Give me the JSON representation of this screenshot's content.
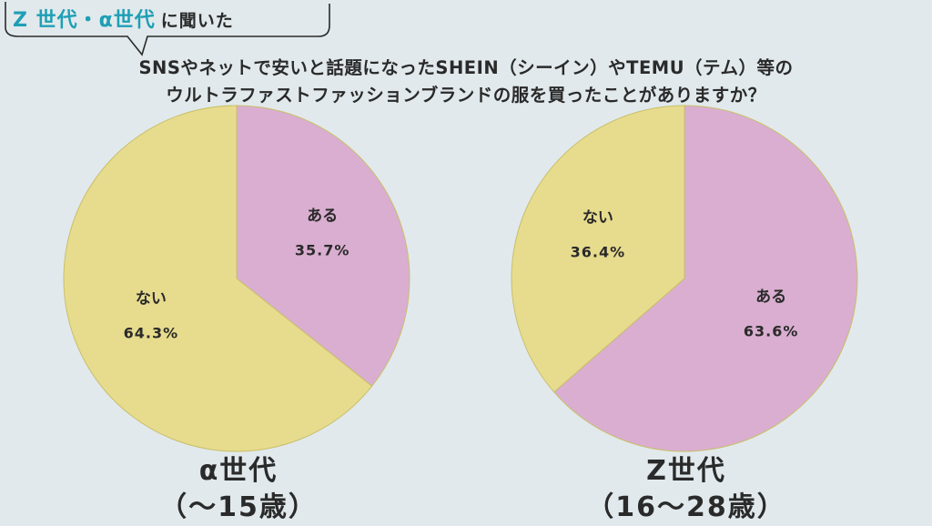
{
  "header": {
    "tag_accent": "Z 世代・α世代",
    "tag_plain": "に聞いた"
  },
  "question": {
    "line1": "SNSやネットで安いと話題になったSHEIN（シーイン）やTEMU（テム）等の",
    "line2": "ウルトラファストファッションブランドの服を買ったことがありますか？"
  },
  "colors": {
    "background": "#e1e9ec",
    "aru": "#d9aed0",
    "nai": "#e7dc8e",
    "accent": "#1e9fb5"
  },
  "chart_data": [
    {
      "type": "pie",
      "group": "α世代",
      "age_range": "（〜15歳）",
      "slices": [
        {
          "label": "ある",
          "value": 35.7,
          "display": "35.7%",
          "color": "#d9aed0"
        },
        {
          "label": "ない",
          "value": 64.3,
          "display": "64.3%",
          "color": "#e7dc8e"
        }
      ]
    },
    {
      "type": "pie",
      "group": "Z世代",
      "age_range": "（16〜28歳）",
      "slices": [
        {
          "label": "ある",
          "value": 63.6,
          "display": "63.6%",
          "color": "#d9aed0"
        },
        {
          "label": "ない",
          "value": 36.4,
          "display": "36.4%",
          "color": "#e7dc8e"
        }
      ]
    }
  ]
}
